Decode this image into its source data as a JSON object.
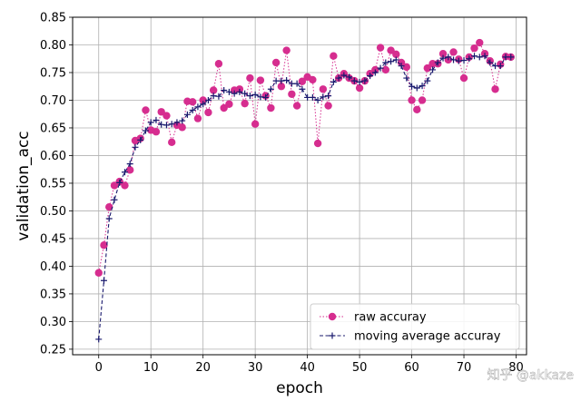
{
  "chart_data": {
    "type": "line",
    "xlabel": "epoch",
    "ylabel": "validation_acc",
    "xlim": [
      -5,
      82
    ],
    "ylim": [
      0.24,
      0.85
    ],
    "xticks": [
      0,
      10,
      20,
      30,
      40,
      50,
      60,
      70,
      80
    ],
    "yticks": [
      0.25,
      0.3,
      0.35,
      0.4,
      0.45,
      0.5,
      0.55,
      0.6,
      0.65,
      0.7,
      0.75,
      0.8,
      0.85
    ],
    "grid": true,
    "legend_position": "bottom-right",
    "x": [
      0,
      1,
      2,
      3,
      4,
      5,
      6,
      7,
      8,
      9,
      10,
      11,
      12,
      13,
      14,
      15,
      16,
      17,
      18,
      19,
      20,
      21,
      22,
      23,
      24,
      25,
      26,
      27,
      28,
      29,
      30,
      31,
      32,
      33,
      34,
      35,
      36,
      37,
      38,
      39,
      40,
      41,
      42,
      43,
      44,
      45,
      46,
      47,
      48,
      49,
      50,
      51,
      52,
      53,
      54,
      55,
      56,
      57,
      58,
      59,
      60,
      61,
      62,
      63,
      64,
      65,
      66,
      67,
      68,
      69,
      70,
      71,
      72,
      73,
      74,
      75,
      76,
      77,
      78,
      79
    ],
    "series": [
      {
        "name": "raw accuray",
        "color": "#d62d8f",
        "style": "dotted-circles",
        "values": [
          0.388,
          0.438,
          0.507,
          0.546,
          0.553,
          0.546,
          0.574,
          0.627,
          0.631,
          0.682,
          0.646,
          0.643,
          0.679,
          0.672,
          0.624,
          0.655,
          0.651,
          0.698,
          0.697,
          0.667,
          0.7,
          0.678,
          0.718,
          0.766,
          0.686,
          0.693,
          0.718,
          0.72,
          0.694,
          0.74,
          0.657,
          0.736,
          0.708,
          0.686,
          0.768,
          0.725,
          0.79,
          0.711,
          0.69,
          0.734,
          0.742,
          0.737,
          0.622,
          0.72,
          0.69,
          0.78,
          0.74,
          0.748,
          0.74,
          0.735,
          0.722,
          0.735,
          0.748,
          0.755,
          0.795,
          0.755,
          0.79,
          0.783,
          0.768,
          0.76,
          0.7,
          0.683,
          0.7,
          0.758,
          0.766,
          0.766,
          0.784,
          0.773,
          0.787,
          0.774,
          0.74,
          0.778,
          0.794,
          0.804,
          0.784,
          0.771,
          0.72,
          0.765,
          0.779,
          0.778
        ]
      },
      {
        "name": "moving average accuray",
        "color": "#1a1a6e",
        "style": "dashed-plus",
        "values": [
          0.268,
          0.374,
          0.486,
          0.52,
          0.551,
          0.57,
          0.585,
          0.615,
          0.628,
          0.645,
          0.66,
          0.664,
          0.656,
          0.655,
          0.657,
          0.66,
          0.663,
          0.674,
          0.682,
          0.688,
          0.693,
          0.7,
          0.708,
          0.707,
          0.718,
          0.715,
          0.712,
          0.715,
          0.712,
          0.708,
          0.71,
          0.706,
          0.705,
          0.72,
          0.735,
          0.735,
          0.736,
          0.73,
          0.73,
          0.72,
          0.705,
          0.705,
          0.7,
          0.706,
          0.708,
          0.733,
          0.74,
          0.745,
          0.742,
          0.735,
          0.733,
          0.735,
          0.744,
          0.75,
          0.758,
          0.768,
          0.77,
          0.773,
          0.762,
          0.74,
          0.725,
          0.722,
          0.726,
          0.735,
          0.755,
          0.768,
          0.776,
          0.778,
          0.773,
          0.771,
          0.772,
          0.775,
          0.78,
          0.778,
          0.78,
          0.768,
          0.762,
          0.762,
          0.778,
          0.778
        ]
      }
    ]
  },
  "watermark": "知乎 @akkaze"
}
